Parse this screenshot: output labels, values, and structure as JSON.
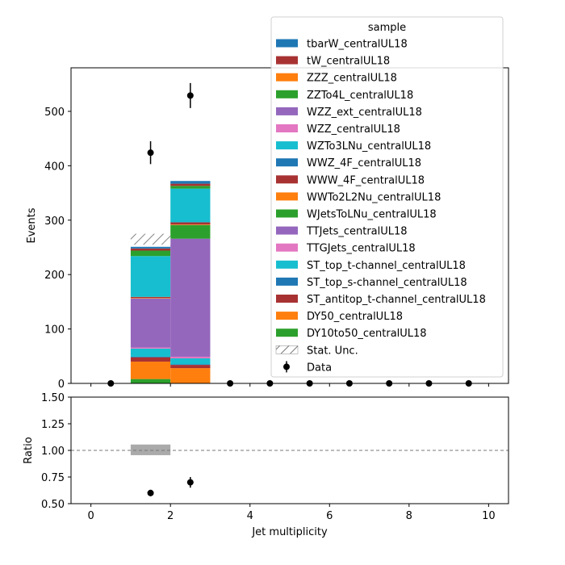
{
  "chart_data": [
    {
      "type": "bar",
      "stacked": true,
      "xlabel": "",
      "ylabel": "Events",
      "xlim": [
        -0.5,
        10.5
      ],
      "ylim": [
        0,
        580
      ],
      "x_bins": [
        [
          1,
          2
        ],
        [
          2,
          3
        ]
      ],
      "series": [
        {
          "name": "DY10to50_centralUL18",
          "color": "#2ca02c",
          "values": [
            8,
            0
          ]
        },
        {
          "name": "DY50_centralUL18",
          "color": "#ff7f0e",
          "values": [
            32,
            28
          ]
        },
        {
          "name": "ST_antitop_t-channel_centralUL18",
          "color": "#a83232",
          "values": [
            8,
            6
          ]
        },
        {
          "name": "ST_top_s-channel_centralUL18",
          "color": "#1f77b4",
          "values": [
            1,
            1
          ]
        },
        {
          "name": "ST_top_t-channel_centralUL18",
          "color": "#17becf",
          "values": [
            15,
            11
          ]
        },
        {
          "name": "TTGJets_centralUL18",
          "color": "#e377c2",
          "values": [
            2,
            3
          ]
        },
        {
          "name": "TTJets_centralUL18",
          "color": "#9467bd",
          "values": [
            90,
            217
          ]
        },
        {
          "name": "WJetsToLNu_centralUL18",
          "color": "#2ca02c",
          "values": [
            0,
            25
          ]
        },
        {
          "name": "WWTo2L2Nu_centralUL18",
          "color": "#ff7f0e",
          "values": [
            1,
            1
          ]
        },
        {
          "name": "WWW_4F_centralUL18",
          "color": "#a83232",
          "values": [
            2,
            4
          ]
        },
        {
          "name": "WWZ_4F_centralUL18",
          "color": "#1f77b4",
          "values": [
            0,
            0
          ]
        },
        {
          "name": "WZTo3LNu_centralUL18",
          "color": "#17becf",
          "values": [
            75,
            62
          ]
        },
        {
          "name": "WZZ_centralUL18",
          "color": "#e377c2",
          "values": [
            0,
            0
          ]
        },
        {
          "name": "WZZ_ext_centralUL18",
          "color": "#9467bd",
          "values": [
            0,
            0
          ]
        },
        {
          "name": "ZZTo4L_centralUL18",
          "color": "#2ca02c",
          "values": [
            10,
            5
          ]
        },
        {
          "name": "ZZZ_centralUL18",
          "color": "#ff7f0e",
          "values": [
            0,
            0
          ]
        },
        {
          "name": "tW_centralUL18",
          "color": "#a83232",
          "values": [
            4,
            4
          ]
        },
        {
          "name": "tbarW_centralUL18",
          "color": "#1f77b4",
          "values": [
            3,
            5
          ]
        }
      ],
      "stat_unc": {
        "name": "Stat. Unc.",
        "bins": [
          [
            1,
            2
          ]
        ],
        "low": [
          255
        ],
        "high": [
          275
        ]
      },
      "data": {
        "name": "Data",
        "x": [
          0.5,
          1.5,
          2.5,
          3.5,
          4.5,
          5.5,
          6.5,
          7.5,
          8.5,
          9.5
        ],
        "y": [
          0,
          424,
          529,
          0,
          0,
          0,
          0,
          0,
          0,
          0
        ],
        "yerr": [
          0,
          21,
          23,
          0,
          0,
          0,
          0,
          0,
          0,
          0
        ]
      },
      "yticks": [
        "0",
        "100",
        "200",
        "300",
        "400",
        "500"
      ],
      "legend": {
        "title": "sample",
        "placement": "top-right"
      },
      "grid": false
    },
    {
      "type": "scatter",
      "xlabel": "Jet multiplicity",
      "ylabel": "Ratio",
      "xlim": [
        -0.5,
        10.5
      ],
      "ylim": [
        0.5,
        1.5
      ],
      "reference_line": 1.0,
      "unc_band": {
        "x0": 1,
        "x1": 2,
        "low": 0.955,
        "high": 1.055
      },
      "points": {
        "x": [
          1.5,
          2.5
        ],
        "y": [
          0.6,
          0.7
        ],
        "yerr": [
          0.03,
          0.05
        ]
      },
      "xticks": [
        "0",
        "2",
        "4",
        "6",
        "8",
        "10"
      ],
      "yticks": [
        "0.50",
        "0.75",
        "1.00",
        "1.25",
        "1.50"
      ],
      "grid": false
    }
  ]
}
